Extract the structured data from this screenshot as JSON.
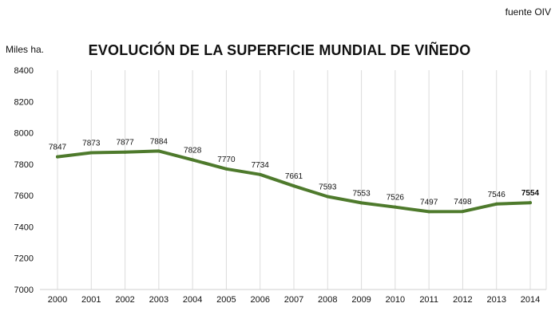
{
  "source_note": "fuente OIV",
  "unit_label": "Miles ha.",
  "chart_data": {
    "type": "line",
    "title": "EVOLUCIÓN DE LA SUPERFICIE MUNDIAL DE VIÑEDO",
    "xlabel": "",
    "ylabel": "Miles ha.",
    "categories": [
      "2000",
      "2001",
      "2002",
      "2003",
      "2004",
      "2005",
      "2006",
      "2007",
      "2008",
      "2009",
      "2010",
      "2011",
      "2012",
      "2013",
      "2014"
    ],
    "series": [
      {
        "values": [
          7847,
          7873,
          7877,
          7884,
          7828,
          7770,
          7734,
          7661,
          7593,
          7553,
          7526,
          7497,
          7498,
          7546,
          7554
        ]
      }
    ],
    "ylim": [
      7000,
      8400
    ],
    "yticks": [
      7000,
      7200,
      7400,
      7600,
      7800,
      8000,
      8200,
      8400
    ],
    "grid": "vertical",
    "line_color": "#4e7a2c",
    "data_labels": true,
    "bold_last_label": true
  }
}
